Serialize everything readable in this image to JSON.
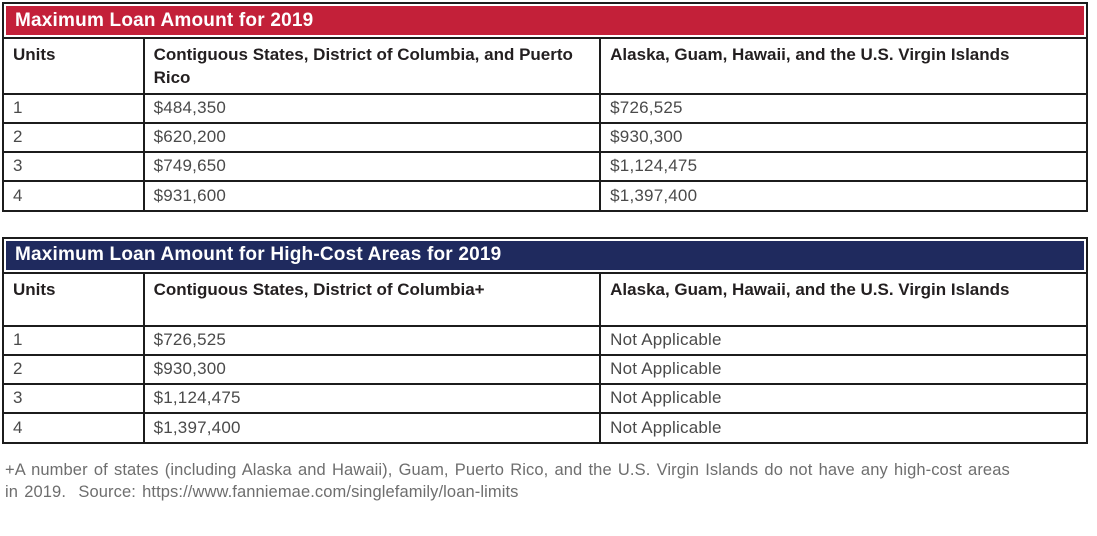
{
  "colors": {
    "table1_title_bg": "#c32039",
    "table2_title_bg": "#1f2a5e",
    "title_text": "#ffffff",
    "table_border": "#1c1c1c",
    "header_text": "#231f20",
    "body_text": "#4a4a4a",
    "footnote_text": "#6e6e6e"
  },
  "tables": [
    {
      "title": "Maximum Loan Amount for 2019",
      "columns": [
        "Units",
        "Contiguous States, District of Columbia, and Puerto Rico",
        "Alaska, Guam, Hawaii, and the U.S. Virgin Islands"
      ],
      "rows": [
        [
          "1",
          "$484,350",
          "$726,525"
        ],
        [
          "2",
          "$620,200",
          "$930,300"
        ],
        [
          "3",
          "$749,650",
          "$1,124,475"
        ],
        [
          "4",
          "$931,600",
          "$1,397,400"
        ]
      ]
    },
    {
      "title": "Maximum Loan Amount for High-Cost Areas for 2019",
      "columns": [
        "Units",
        "Contiguous States, District of Columbia+",
        "Alaska, Guam, Hawaii, and the U.S. Virgin Islands"
      ],
      "rows": [
        [
          "1",
          "$726,525",
          "Not Applicable"
        ],
        [
          "2",
          "$930,300",
          "Not Applicable"
        ],
        [
          "3",
          "$1,124,475",
          "Not Applicable"
        ],
        [
          "4",
          "$1,397,400",
          "Not Applicable"
        ]
      ]
    }
  ],
  "footnote": "+A number of states (including Alaska and Hawaii), Guam, Puerto Rico, and the U.S. Virgin Islands do not have any high-cost areas in 2019.  Source: https://www.fanniemae.com/singlefamily/loan-limits"
}
